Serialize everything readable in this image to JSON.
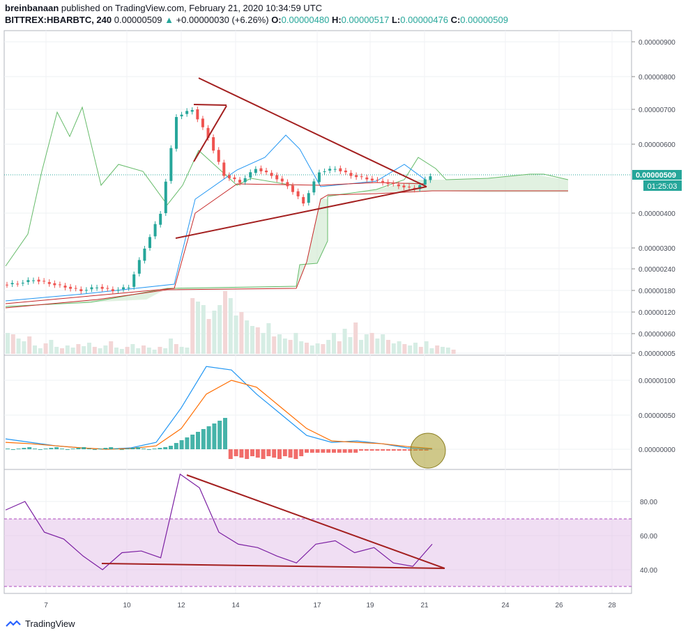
{
  "header": {
    "author": "breinbanaan",
    "published_text": "published on TradingView.com, February 21, 2020 10:34:59 UTC",
    "symbol": "BITTREX:HBARBTC, 240",
    "last": "0.00000509",
    "change_arrow": "▲",
    "change": "+0.00000030 (+6.26%)",
    "o_label": "O:",
    "o_value": "0.00000480",
    "h_label": "H:",
    "h_value": "0.00000517",
    "l_label": "L:",
    "l_value": "0.00000476",
    "c_label": "C:",
    "c_value": "0.00000509"
  },
  "price_badge": {
    "price": "0.00000509",
    "countdown": "01:25:03"
  },
  "footer": {
    "brand": "TradingView"
  },
  "colors": {
    "up": "#26a69a",
    "down": "#ef5350",
    "trend": "#a31f1f",
    "cloud_green": "#4caf50",
    "cloud_red": "#b71c1c",
    "macd": "#2196f3",
    "signal": "#ff6d00",
    "rsi": "#7b1fa2"
  },
  "chart_data": [
    {
      "type": "candlestick",
      "name": "price",
      "y_ticks": [
        "0.00000900",
        "0.00000800",
        "0.00000700",
        "0.00000600",
        "0.00000400",
        "0.00000300",
        "0.00000240",
        "0.00000180",
        "0.00000120",
        "0.00000060",
        "0.00000005"
      ],
      "x_ticks": [
        "7",
        "10",
        "12",
        "14",
        "17",
        "19",
        "21",
        "24",
        "26",
        "28"
      ],
      "close_path": [
        1.96e-06,
        2e-06,
        2.1e-06,
        2e-06,
        1.9e-06,
        1.8e-06,
        1.9e-06,
        1.8e-06,
        1.9e-06,
        3e-06,
        4e-06,
        6.8e-06,
        7e-06,
        6.2e-06,
        5.1e-06,
        4.9e-06,
        5.3e-06,
        5.1e-06,
        4.8e-06,
        4.3e-06,
        5.2e-06,
        5.3e-06,
        5.1e-06,
        5e-06,
        4.9e-06,
        4.8e-06,
        4.7e-06,
        5.09e-06
      ],
      "annotation_trendlines": [
        "descending upper triangle line",
        "ascending lower triangle line"
      ]
    },
    {
      "type": "line",
      "name": "macd",
      "y_ticks": [
        "0.00000100",
        "0.00000050",
        "0.00000000"
      ],
      "series": [
        {
          "values": [
            1.5e-07,
            1e-07,
            5e-08,
            2e-08,
            0.0,
            2e-08,
            1e-07,
            6e-07,
            1.2e-06,
            1.15e-06,
            8e-07,
            5e-07,
            2e-07,
            1e-07,
            1.2e-07,
            8e-08,
            2e-08,
            0.0
          ]
        },
        {
          "values": [
            1e-07,
            8e-08,
            5e-08,
            2e-08,
            0.0,
            1e-08,
            5e-08,
            3e-07,
            8e-07,
            1e-06,
            9e-07,
            6e-07,
            3e-07,
            1.2e-07,
            1e-07,
            8e-08,
            4e-08,
            1e-08
          ]
        }
      ]
    },
    {
      "type": "line",
      "name": "rsi",
      "y_ticks": [
        "80.00",
        "60.00",
        "40.00"
      ],
      "values": [
        75,
        80,
        62,
        58,
        48,
        40,
        50,
        51,
        47,
        96,
        88,
        62,
        55,
        53,
        48,
        44,
        55,
        57,
        50,
        53,
        44,
        42,
        55
      ]
    }
  ]
}
